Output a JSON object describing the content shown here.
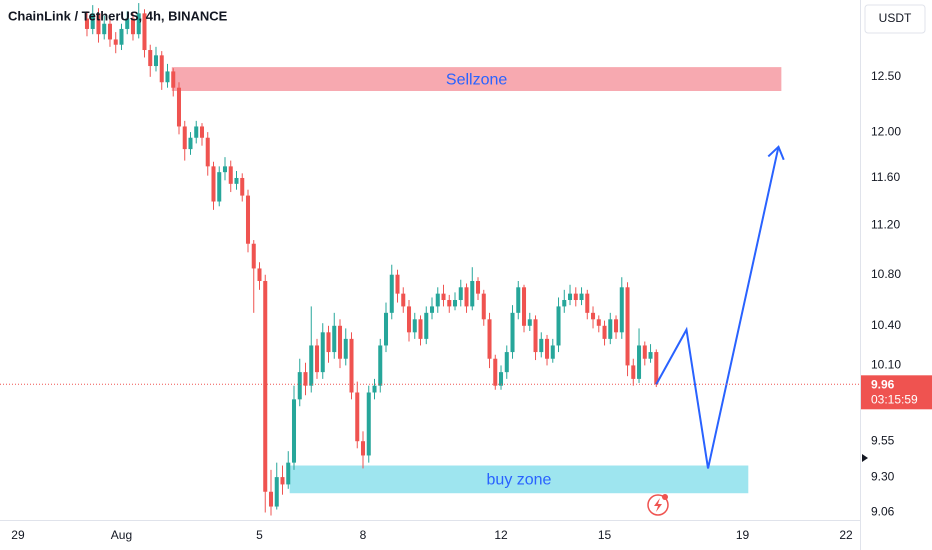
{
  "chart_data": {
    "type": "candlestick",
    "title": "ChainLink / TetherUS, 4h, BINANCE",
    "currency": "USDT",
    "countdown": "03:15:59",
    "log_scale": true,
    "grid": false,
    "up_color": "#26a69a",
    "down_color": "#ef5350",
    "xlim": [
      -12.5,
      585.7
    ],
    "ylim": [
      9.01,
      13.23
    ],
    "xticks": [
      {
        "value": 0,
        "label": "29"
      },
      {
        "value": 72,
        "label": "Aug"
      },
      {
        "value": 168,
        "label": "5"
      },
      {
        "value": 240,
        "label": "8"
      },
      {
        "value": 336,
        "label": "12"
      },
      {
        "value": 408,
        "label": "15"
      },
      {
        "value": 504,
        "label": "19"
      },
      {
        "value": 576,
        "label": "22"
      }
    ],
    "yticks": [
      9.06,
      {
        "value": 9.3,
        "label": "9.30"
      },
      9.55,
      {
        "value": 10.1,
        "label": "10.10"
      },
      {
        "value": 10.4,
        "label": "10.40"
      },
      {
        "value": 10.8,
        "label": "10.80"
      },
      {
        "value": 11.2,
        "label": "11.20"
      },
      {
        "value": 11.6,
        "label": "11.60"
      },
      {
        "value": 12,
        "label": "12.00"
      },
      {
        "value": 12.5,
        "label": "12.50"
      }
    ],
    "x": [
      48,
      52,
      56,
      60,
      64,
      68,
      72,
      76,
      80,
      84,
      88,
      92,
      96,
      100,
      104,
      108,
      112,
      116,
      120,
      124,
      128,
      132,
      136,
      140,
      144,
      148,
      152,
      156,
      160,
      164,
      168,
      172,
      176,
      180,
      184,
      188,
      192,
      196,
      200,
      204,
      208,
      212,
      216,
      220,
      224,
      228,
      232,
      236,
      240,
      244,
      248,
      252,
      256,
      260,
      264,
      268,
      272,
      276,
      280,
      284,
      288,
      292,
      296,
      300,
      304,
      308,
      312,
      316,
      320,
      324,
      328,
      332,
      336,
      340,
      344,
      348,
      352,
      356,
      360,
      364,
      368,
      372,
      376,
      380,
      384,
      388,
      392,
      396,
      400,
      404,
      408,
      412,
      416,
      420,
      424,
      428,
      432,
      436,
      440,
      444
    ],
    "candles": {
      "open": [
        13.05,
        12.95,
        13.1,
        12.9,
        13.0,
        12.85,
        12.8,
        12.95,
        13.05,
        12.9,
        13.1,
        12.75,
        12.6,
        12.7,
        12.45,
        12.55,
        12.4,
        12.05,
        11.85,
        11.95,
        12.05,
        11.95,
        11.7,
        11.4,
        11.65,
        11.7,
        11.55,
        11.6,
        11.45,
        11.05,
        10.85,
        10.75,
        9.2,
        9.1,
        9.3,
        9.25,
        9.4,
        9.85,
        10.05,
        9.95,
        10.25,
        10.05,
        10.35,
        10.2,
        10.4,
        10.15,
        10.3,
        9.9,
        9.55,
        9.45,
        9.9,
        9.95,
        10.25,
        10.5,
        10.8,
        10.65,
        10.55,
        10.35,
        10.45,
        10.3,
        10.5,
        10.55,
        10.65,
        10.6,
        10.55,
        10.6,
        10.7,
        10.55,
        10.75,
        10.65,
        10.45,
        10.15,
        9.95,
        10.05,
        10.2,
        10.5,
        10.7,
        10.4,
        10.45,
        10.2,
        10.3,
        10.15,
        10.25,
        10.55,
        10.6,
        10.65,
        10.6,
        10.65,
        10.5,
        10.45,
        10.4,
        10.3,
        10.45,
        10.35,
        10.7,
        10.1,
        10.0,
        10.25,
        10.15,
        10.2
      ],
      "high": [
        13.12,
        13.18,
        13.15,
        13.08,
        13.05,
        12.92,
        13.0,
        13.12,
        13.1,
        13.2,
        13.14,
        12.8,
        12.78,
        12.74,
        12.62,
        12.58,
        12.45,
        12.1,
        12.0,
        12.1,
        12.08,
        12.0,
        11.74,
        11.7,
        11.78,
        11.75,
        11.66,
        11.64,
        11.5,
        11.08,
        10.9,
        10.8,
        9.35,
        9.4,
        9.38,
        9.48,
        9.95,
        10.15,
        10.12,
        10.55,
        10.3,
        10.42,
        10.4,
        10.5,
        10.45,
        10.38,
        10.35,
        9.98,
        9.62,
        9.95,
        10.0,
        10.3,
        10.58,
        10.88,
        10.84,
        10.7,
        10.6,
        10.5,
        10.48,
        10.55,
        10.62,
        10.7,
        10.72,
        10.64,
        10.66,
        10.76,
        10.73,
        10.86,
        10.78,
        10.68,
        10.5,
        10.18,
        10.1,
        10.25,
        10.56,
        10.75,
        10.72,
        10.5,
        10.48,
        10.35,
        10.33,
        10.3,
        10.62,
        10.68,
        10.72,
        10.7,
        10.7,
        10.68,
        10.55,
        10.48,
        10.44,
        10.5,
        10.48,
        10.78,
        10.74,
        10.15,
        10.38,
        10.28,
        10.26,
        10.22
      ],
      "low": [
        12.88,
        12.9,
        12.82,
        12.85,
        12.78,
        12.72,
        12.75,
        12.9,
        12.84,
        12.86,
        12.68,
        12.5,
        12.55,
        12.38,
        12.4,
        12.32,
        11.98,
        11.75,
        11.8,
        11.9,
        11.88,
        11.62,
        11.33,
        11.36,
        11.58,
        11.48,
        11.5,
        11.4,
        10.98,
        10.5,
        10.68,
        9.06,
        9.04,
        9.08,
        9.18,
        9.22,
        9.35,
        9.8,
        9.88,
        9.9,
        10.0,
        10.0,
        10.12,
        10.15,
        10.08,
        10.1,
        9.85,
        9.5,
        9.36,
        9.4,
        9.85,
        9.9,
        10.2,
        10.45,
        10.58,
        10.5,
        10.28,
        10.3,
        10.25,
        10.26,
        10.45,
        10.5,
        10.55,
        10.5,
        10.52,
        10.55,
        10.5,
        10.52,
        10.6,
        10.4,
        10.08,
        9.92,
        9.92,
        10.0,
        10.15,
        10.45,
        10.35,
        10.36,
        10.14,
        10.16,
        10.1,
        10.12,
        10.2,
        10.5,
        10.56,
        10.55,
        10.56,
        10.45,
        10.38,
        10.35,
        10.25,
        10.26,
        10.3,
        10.3,
        10.02,
        9.95,
        9.97,
        10.1,
        10.12,
        9.94
      ],
      "close": [
        12.95,
        13.1,
        12.9,
        13.0,
        12.85,
        12.8,
        12.95,
        13.05,
        12.9,
        13.1,
        12.75,
        12.6,
        12.7,
        12.45,
        12.55,
        12.4,
        12.05,
        11.85,
        11.95,
        12.05,
        11.95,
        11.7,
        11.4,
        11.65,
        11.7,
        11.55,
        11.6,
        11.45,
        11.05,
        10.85,
        10.75,
        9.2,
        9.1,
        9.3,
        9.25,
        9.4,
        9.85,
        10.05,
        9.95,
        10.25,
        10.05,
        10.35,
        10.2,
        10.4,
        10.15,
        10.3,
        9.9,
        9.55,
        9.45,
        9.9,
        9.95,
        10.25,
        10.5,
        10.8,
        10.65,
        10.55,
        10.35,
        10.45,
        10.3,
        10.5,
        10.55,
        10.65,
        10.6,
        10.55,
        10.6,
        10.7,
        10.55,
        10.75,
        10.65,
        10.45,
        10.15,
        9.95,
        10.05,
        10.2,
        10.5,
        10.7,
        10.4,
        10.45,
        10.2,
        10.3,
        10.15,
        10.25,
        10.55,
        10.6,
        10.65,
        10.6,
        10.65,
        10.5,
        10.45,
        10.4,
        10.3,
        10.45,
        10.35,
        10.7,
        10.1,
        10.0,
        10.25,
        10.15,
        10.2,
        9.96
      ]
    },
    "zones": [
      {
        "label": "Sellzone",
        "x": [
          107,
          531
        ],
        "y": [
          12.37,
          12.59
        ],
        "color": "#f7a9b0",
        "text_color": "#2962ff"
      },
      {
        "label": "buy zone",
        "x": [
          189,
          508
        ],
        "y": [
          9.19,
          9.38
        ],
        "color": "#9ee5ef",
        "text_color": "#2962ff"
      }
    ],
    "projection": {
      "color": "#2962ff",
      "x": [
        444,
        465,
        480,
        529
      ],
      "y": [
        9.96,
        10.37,
        9.36,
        11.87
      ]
    }
  }
}
